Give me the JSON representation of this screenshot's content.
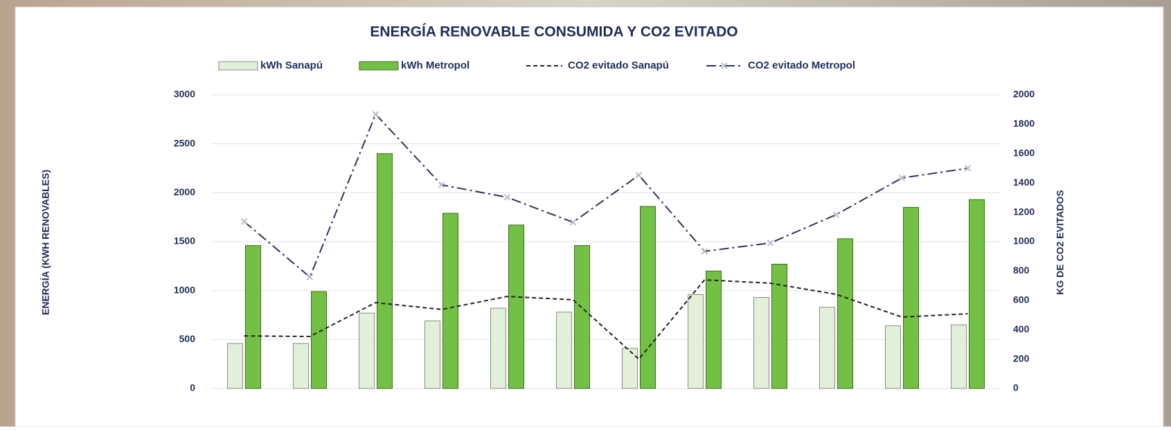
{
  "chart_data": {
    "type": "bar",
    "title": "ENERGÍA RENOVABLE CONSUMIDA Y CO2 EVITADO",
    "y_label": "ENERGÍA (KWH RENOVABLES)",
    "y2_label": "KG DE CO2 EVITADOS",
    "categories": [
      null,
      null,
      null,
      null,
      null,
      null,
      null,
      null,
      null,
      null,
      null,
      null
    ],
    "series": [
      {
        "name": "kWh Sanapú",
        "type": "bar",
        "color": "#e2efd9",
        "values": [
          460,
          460,
          770,
          690,
          820,
          780,
          410,
          960,
          930,
          830,
          640,
          650
        ]
      },
      {
        "name": "kWh Metropol",
        "type": "bar",
        "color": "#72c144",
        "values": [
          1460,
          990,
          2400,
          1790,
          1670,
          1460,
          1860,
          1200,
          1270,
          1530,
          1850,
          1930
        ]
      },
      {
        "name": "CO2 evitado Sanapú",
        "type": "line",
        "axis": "y2",
        "color": "#222222",
        "line_style": "dashed",
        "values": [
          358,
          354,
          585,
          538,
          627,
          604,
          200,
          740,
          717,
          641,
          486,
          509
        ]
      },
      {
        "name": "CO2 evitado Metropol",
        "type": "line",
        "axis": "y2",
        "color": "#2a3466",
        "line_style": "dashdot",
        "marker": "x",
        "values": [
          1137,
          759,
          1868,
          1387,
          1302,
          1132,
          1453,
          934,
          991,
          1184,
          1434,
          1500
        ]
      }
    ],
    "ylim": [
      0,
      3000
    ],
    "yticks": [
      0,
      500,
      1000,
      1500,
      2000,
      2500,
      3000
    ],
    "y2lim": [
      0,
      2000
    ],
    "y2ticks": [
      0,
      200,
      400,
      600,
      800,
      1000,
      1200,
      1400,
      1600,
      1800,
      2000
    ],
    "grid": true,
    "legend": "top"
  }
}
